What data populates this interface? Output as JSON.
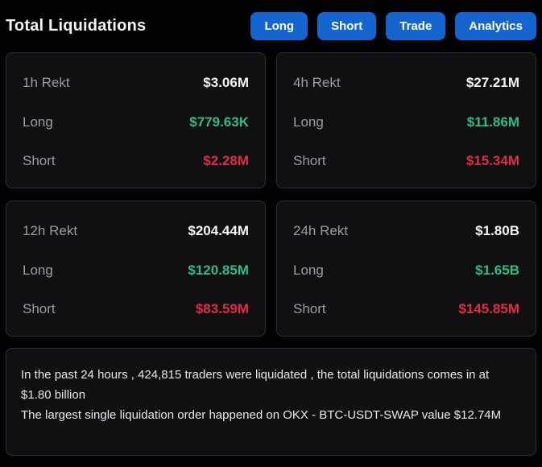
{
  "header": {
    "title": "Total Liquidations",
    "buttons": [
      {
        "label": "Long"
      },
      {
        "label": "Short"
      },
      {
        "label": "Trade"
      },
      {
        "label": "Analytics"
      }
    ]
  },
  "cards": [
    {
      "period": "1h Rekt",
      "total": "$3.06M",
      "long_label": "Long",
      "long_value": "$779.63K",
      "short_label": "Short",
      "short_value": "$2.28M"
    },
    {
      "period": "4h Rekt",
      "total": "$27.21M",
      "long_label": "Long",
      "long_value": "$11.86M",
      "short_label": "Short",
      "short_value": "$15.34M"
    },
    {
      "period": "12h Rekt",
      "total": "$204.44M",
      "long_label": "Long",
      "long_value": "$120.85M",
      "short_label": "Short",
      "short_value": "$83.59M"
    },
    {
      "period": "24h Rekt",
      "total": "$1.80B",
      "long_label": "Long",
      "long_value": "$1.65B",
      "short_label": "Short",
      "short_value": "$145.85M"
    }
  ],
  "summary": {
    "line1": "In the past 24 hours , 424,815 traders were liquidated , the total liquidations comes in at $1.80 billion",
    "line2": "The largest single liquidation order happened on OKX - BTC-USDT-SWAP value $12.74M"
  },
  "colors": {
    "accent_blue": "#1565d1",
    "long_green": "#2dbd85",
    "short_red": "#e22c47",
    "card_background": "#101013",
    "card_border": "#2e2e33",
    "page_background": "#020204"
  }
}
